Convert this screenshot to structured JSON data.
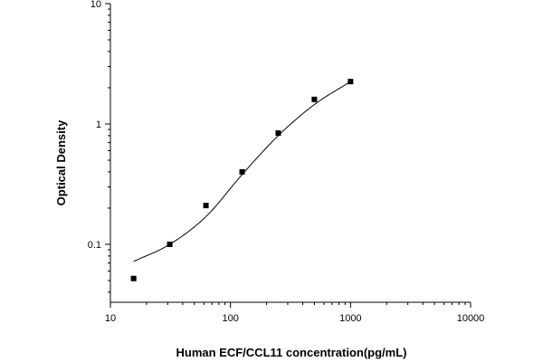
{
  "chart_data": {
    "type": "scatter",
    "title": "",
    "xlabel": "Human ECF/CCL11 concentration(pg/mL)",
    "ylabel": "Optical Density",
    "xscale": "log",
    "yscale": "log",
    "xlim": [
      10,
      10000
    ],
    "ylim": [
      0.033,
      10
    ],
    "x_ticks": [
      10,
      100,
      1000,
      10000
    ],
    "x_tick_labels": [
      "10",
      "100",
      "1000",
      "10000"
    ],
    "y_ticks": [
      0.1,
      1,
      10
    ],
    "y_tick_labels": [
      "0.1",
      "1",
      "10"
    ],
    "grid": false,
    "legend": "none",
    "series": [
      {
        "kind": "markers",
        "x": [
          15.6,
          31.2,
          62.5,
          125,
          250,
          500,
          1000
        ],
        "y": [
          0.052,
          0.1,
          0.21,
          0.4,
          0.84,
          1.6,
          2.25
        ]
      },
      {
        "kind": "fit-curve",
        "x": [
          15.6,
          31.2,
          62.5,
          125,
          250,
          500,
          1000
        ],
        "y": [
          0.072,
          0.1,
          0.17,
          0.38,
          0.8,
          1.45,
          2.25
        ]
      }
    ],
    "colors": {
      "axis": "#000000",
      "marker": "#000000",
      "curve": "#000000"
    }
  }
}
